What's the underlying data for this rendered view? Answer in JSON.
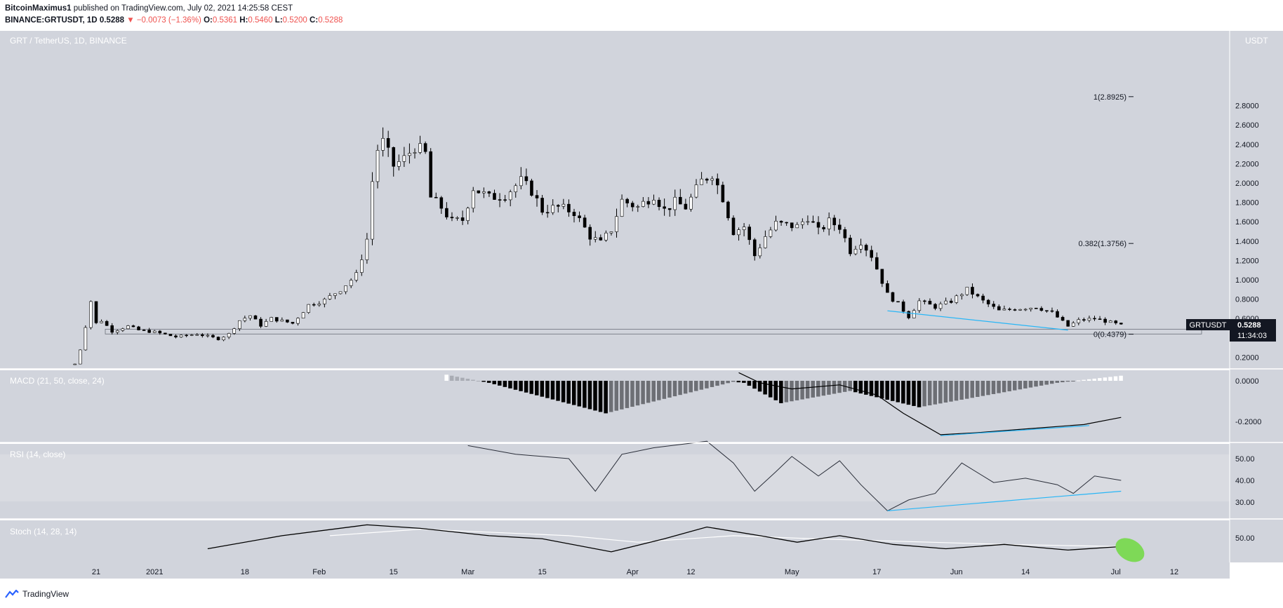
{
  "header": {
    "author": "BitcoinMaximus1",
    "published": "published on TradingView.com, July 02, 2021 14:25:58 CEST",
    "symbol_line": "BINANCE:GRTUSDT, 1D",
    "last": "0.5288",
    "change": "−0.0073 (−1.36%)",
    "o_label": "O:",
    "o": "0.5361",
    "h_label": "H:",
    "h": "0.5460",
    "l_label": "L:",
    "l": "0.5200",
    "c_label": "C:",
    "c": "0.5288"
  },
  "panes": {
    "main_title": "GRT / TetherUS, 1D, BINANCE",
    "currency": "USDT",
    "macd_title": "MACD (21, 50, close, 24)",
    "rsi_title": "RSI (14, close)",
    "stoch_title": "Stoch (14, 28, 14)"
  },
  "price_tag": {
    "symbol": "GRTUSDT",
    "price": "0.5288",
    "countdown": "11:34:03"
  },
  "footer": {
    "brand": "TradingView"
  },
  "colors": {
    "background": "#d1d4dc",
    "up": "#ffffff",
    "down": "#000000",
    "trendline": "#29b6f6",
    "highlight": "#7ed957"
  },
  "chart_data": {
    "type": "candlestick",
    "price_axis": {
      "ticks": [
        "2.8000",
        "2.6000",
        "2.4000",
        "2.2000",
        "2.0000",
        "1.8000",
        "1.6000",
        "1.4000",
        "1.2000",
        "1.0000",
        "0.8000",
        "0.6000",
        "0.4000",
        "0.2000"
      ],
      "ylim": [
        0.0,
        2.95
      ]
    },
    "x_axis": {
      "ticks": [
        "21",
        "2021",
        "18",
        "Feb",
        "15",
        "Mar",
        "15",
        "Apr",
        "12",
        "May",
        "17",
        "Jun",
        "14",
        "Jul",
        "12"
      ]
    },
    "fib_levels": [
      {
        "label": "1(2.8925)",
        "value": 2.8925
      },
      {
        "label": "0.382(1.3756)",
        "value": 1.3756
      },
      {
        "label": "0(0.4379)",
        "value": 0.4379
      }
    ],
    "support_zone": [
      0.44,
      0.49
    ],
    "price_series": [
      {
        "d": "2020-12-17",
        "c": 0.13
      },
      {
        "d": "2020-12-18",
        "c": 0.28
      },
      {
        "d": "2020-12-19",
        "c": 0.52
      },
      {
        "d": "2020-12-20",
        "c": 0.78
      },
      {
        "d": "2020-12-21",
        "c": 0.55
      },
      {
        "d": "2020-12-22",
        "c": 0.58
      },
      {
        "d": "2020-12-24",
        "c": 0.47
      },
      {
        "d": "2020-12-27",
        "c": 0.52
      },
      {
        "d": "2020-12-29",
        "c": 0.48
      },
      {
        "d": "2021-01-01",
        "c": 0.46
      },
      {
        "d": "2021-01-05",
        "c": 0.41
      },
      {
        "d": "2021-01-09",
        "c": 0.44
      },
      {
        "d": "2021-01-13",
        "c": 0.39
      },
      {
        "d": "2021-01-15",
        "c": 0.44
      },
      {
        "d": "2021-01-17",
        "c": 0.58
      },
      {
        "d": "2021-01-19",
        "c": 0.63
      },
      {
        "d": "2021-01-21",
        "c": 0.53
      },
      {
        "d": "2021-01-23",
        "c": 0.6
      },
      {
        "d": "2021-01-27",
        "c": 0.55
      },
      {
        "d": "2021-01-30",
        "c": 0.74
      },
      {
        "d": "2021-02-02",
        "c": 0.79
      },
      {
        "d": "2021-02-05",
        "c": 0.9
      },
      {
        "d": "2021-02-08",
        "c": 1.05
      },
      {
        "d": "2021-02-10",
        "c": 1.42
      },
      {
        "d": "2021-02-11",
        "c": 2.02
      },
      {
        "d": "2021-02-12",
        "c": 2.35
      },
      {
        "d": "2021-02-13",
        "c": 2.42
      },
      {
        "d": "2021-02-15",
        "c": 2.18
      },
      {
        "d": "2021-02-17",
        "c": 2.25
      },
      {
        "d": "2021-02-19",
        "c": 2.38
      },
      {
        "d": "2021-02-21",
        "c": 2.3
      },
      {
        "d": "2021-02-22",
        "c": 1.85
      },
      {
        "d": "2021-02-24",
        "c": 1.75
      },
      {
        "d": "2021-02-26",
        "c": 1.6
      },
      {
        "d": "2021-02-28",
        "c": 1.62
      },
      {
        "d": "2021-03-02",
        "c": 1.95
      },
      {
        "d": "2021-03-05",
        "c": 1.85
      },
      {
        "d": "2021-03-08",
        "c": 1.88
      },
      {
        "d": "2021-03-11",
        "c": 2.02
      },
      {
        "d": "2021-03-13",
        "c": 1.92
      },
      {
        "d": "2021-03-15",
        "c": 1.72
      },
      {
        "d": "2021-03-18",
        "c": 1.75
      },
      {
        "d": "2021-03-21",
        "c": 1.7
      },
      {
        "d": "2021-03-24",
        "c": 1.45
      },
      {
        "d": "2021-03-26",
        "c": 1.38
      },
      {
        "d": "2021-03-28",
        "c": 1.52
      },
      {
        "d": "2021-03-30",
        "c": 1.82
      },
      {
        "d": "2021-04-02",
        "c": 1.75
      },
      {
        "d": "2021-04-05",
        "c": 1.88
      },
      {
        "d": "2021-04-07",
        "c": 1.72
      },
      {
        "d": "2021-04-09",
        "c": 1.8
      },
      {
        "d": "2021-04-11",
        "c": 1.75
      },
      {
        "d": "2021-04-14",
        "c": 2.02
      },
      {
        "d": "2021-04-16",
        "c": 2.1
      },
      {
        "d": "2021-04-18",
        "c": 1.85
      },
      {
        "d": "2021-04-20",
        "c": 1.5
      },
      {
        "d": "2021-04-22",
        "c": 1.55
      },
      {
        "d": "2021-04-24",
        "c": 1.25
      },
      {
        "d": "2021-04-26",
        "c": 1.45
      },
      {
        "d": "2021-04-28",
        "c": 1.58
      },
      {
        "d": "2021-05-02",
        "c": 1.55
      },
      {
        "d": "2021-05-04",
        "c": 1.65
      },
      {
        "d": "2021-05-06",
        "c": 1.5
      },
      {
        "d": "2021-05-08",
        "c": 1.6
      },
      {
        "d": "2021-05-10",
        "c": 1.55
      },
      {
        "d": "2021-05-12",
        "c": 1.3
      },
      {
        "d": "2021-05-14",
        "c": 1.4
      },
      {
        "d": "2021-05-16",
        "c": 1.25
      },
      {
        "d": "2021-05-19",
        "c": 0.85
      },
      {
        "d": "2021-05-21",
        "c": 0.75
      },
      {
        "d": "2021-05-23",
        "c": 0.62
      },
      {
        "d": "2021-05-25",
        "c": 0.78
      },
      {
        "d": "2021-05-28",
        "c": 0.72
      },
      {
        "d": "2021-05-31",
        "c": 0.78
      },
      {
        "d": "2021-06-03",
        "c": 0.9
      },
      {
        "d": "2021-06-06",
        "c": 0.78
      },
      {
        "d": "2021-06-09",
        "c": 0.68
      },
      {
        "d": "2021-06-12",
        "c": 0.7
      },
      {
        "d": "2021-06-16",
        "c": 0.72
      },
      {
        "d": "2021-06-19",
        "c": 0.66
      },
      {
        "d": "2021-06-22",
        "c": 0.52
      },
      {
        "d": "2021-06-24",
        "c": 0.58
      },
      {
        "d": "2021-06-27",
        "c": 0.6
      },
      {
        "d": "2021-06-30",
        "c": 0.56
      },
      {
        "d": "2021-07-02",
        "c": 0.5288
      }
    ],
    "macd": {
      "ticks": [
        "0.0000",
        "-0.2000"
      ],
      "signal_line": [
        {
          "d": "2021-04-21",
          "v": 0.04
        },
        {
          "d": "2021-04-25",
          "v": -0.01
        },
        {
          "d": "2021-05-01",
          "v": -0.04
        },
        {
          "d": "2021-05-10",
          "v": -0.02
        },
        {
          "d": "2021-05-17",
          "v": -0.07
        },
        {
          "d": "2021-05-22",
          "v": -0.16
        },
        {
          "d": "2021-05-29",
          "v": -0.265
        },
        {
          "d": "2021-06-05",
          "v": -0.255
        },
        {
          "d": "2021-06-15",
          "v": -0.235
        },
        {
          "d": "2021-06-25",
          "v": -0.215
        },
        {
          "d": "2021-07-02",
          "v": -0.18
        }
      ],
      "histogram_range": [
        "2021-02-25",
        "2021-07-02"
      ]
    },
    "rsi": {
      "ticks": [
        "50.00",
        "40.00",
        "30.00"
      ],
      "values": [
        {
          "d": "2021-03-01",
          "v": 56
        },
        {
          "d": "2021-03-10",
          "v": 52
        },
        {
          "d": "2021-03-20",
          "v": 50
        },
        {
          "d": "2021-03-25",
          "v": 35
        },
        {
          "d": "2021-03-30",
          "v": 52
        },
        {
          "d": "2021-04-05",
          "v": 55
        },
        {
          "d": "2021-04-15",
          "v": 58
        },
        {
          "d": "2021-04-20",
          "v": 48
        },
        {
          "d": "2021-04-24",
          "v": 35
        },
        {
          "d": "2021-04-28",
          "v": 44
        },
        {
          "d": "2021-05-01",
          "v": 51
        },
        {
          "d": "2021-05-06",
          "v": 42
        },
        {
          "d": "2021-05-10",
          "v": 49
        },
        {
          "d": "2021-05-14",
          "v": 38
        },
        {
          "d": "2021-05-19",
          "v": 26
        },
        {
          "d": "2021-05-23",
          "v": 31
        },
        {
          "d": "2021-05-28",
          "v": 34
        },
        {
          "d": "2021-06-02",
          "v": 48
        },
        {
          "d": "2021-06-08",
          "v": 39
        },
        {
          "d": "2021-06-14",
          "v": 41
        },
        {
          "d": "2021-06-20",
          "v": 38
        },
        {
          "d": "2021-06-23",
          "v": 34
        },
        {
          "d": "2021-06-27",
          "v": 42
        },
        {
          "d": "2021-07-02",
          "v": 40
        }
      ]
    },
    "stoch": {
      "ticks": [
        "50.00"
      ],
      "k_values": [
        {
          "d": "2021-01-11",
          "v": 25
        },
        {
          "d": "2021-01-25",
          "v": 55
        },
        {
          "d": "2021-02-10",
          "v": 80
        },
        {
          "d": "2021-02-20",
          "v": 72
        },
        {
          "d": "2021-03-05",
          "v": 55
        },
        {
          "d": "2021-03-15",
          "v": 48
        },
        {
          "d": "2021-03-28",
          "v": 18
        },
        {
          "d": "2021-04-07",
          "v": 48
        },
        {
          "d": "2021-04-15",
          "v": 75
        },
        {
          "d": "2021-04-25",
          "v": 55
        },
        {
          "d": "2021-05-02",
          "v": 40
        },
        {
          "d": "2021-05-10",
          "v": 55
        },
        {
          "d": "2021-05-20",
          "v": 35
        },
        {
          "d": "2021-05-30",
          "v": 25
        },
        {
          "d": "2021-06-10",
          "v": 35
        },
        {
          "d": "2021-06-22",
          "v": 22
        },
        {
          "d": "2021-07-02",
          "v": 30
        }
      ],
      "d_values": [
        {
          "d": "2021-02-03",
          "v": 55
        },
        {
          "d": "2021-02-20",
          "v": 70
        },
        {
          "d": "2021-03-20",
          "v": 55
        },
        {
          "d": "2021-04-02",
          "v": 40
        },
        {
          "d": "2021-04-20",
          "v": 55
        },
        {
          "d": "2021-05-05",
          "v": 48
        },
        {
          "d": "2021-06-10",
          "v": 35
        },
        {
          "d": "2021-07-02",
          "v": 30
        }
      ]
    }
  }
}
